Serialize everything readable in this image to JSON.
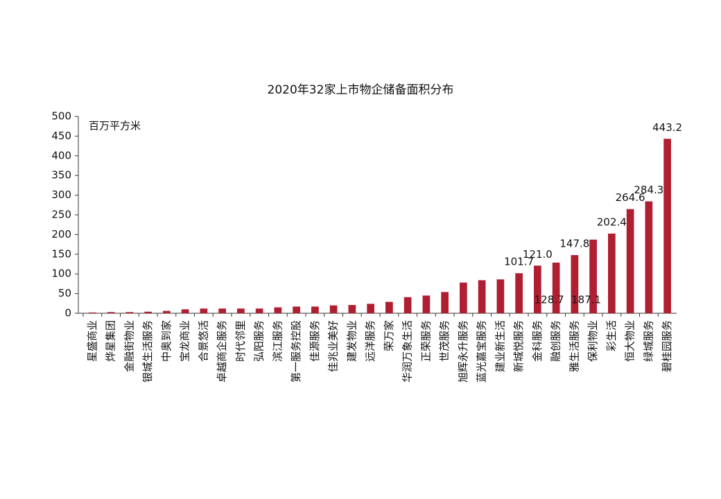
{
  "chart_data": {
    "type": "bar",
    "title": "2020年32家上市物企储备面积分布",
    "y_label": "百万平方米",
    "categories": [
      "星盛商业",
      "烨星集团",
      "金融街物业",
      "银城生活服务",
      "中奥到家",
      "宝龙商业",
      "合景悠活",
      "卓越商企服务",
      "时代邻里",
      "弘阳服务",
      "滨江服务",
      "第一服务控股",
      "佳源服务",
      "佳兆业美好",
      "建发物业",
      "远洋服务",
      "荣万家",
      "华润万象生活",
      "正荣服务",
      "世茂服务",
      "旭辉永升服务",
      "蓝光嘉宝服务",
      "建业新生活",
      "新城悦服务",
      "金科服务",
      "融创服务",
      "雅生活服务",
      "保利物业",
      "彩生活",
      "恒大物业",
      "绿城服务",
      "碧桂园服务"
    ],
    "values": [
      2,
      3,
      3,
      4,
      6,
      10,
      12,
      12,
      12,
      12,
      15,
      17,
      17,
      20,
      21,
      24,
      29,
      41,
      45,
      54,
      78,
      84,
      86,
      101.7,
      121.0,
      128.7,
      147.8,
      187.1,
      202.4,
      264.6,
      284.3,
      443.2
    ],
    "value_labels": [
      null,
      null,
      null,
      null,
      null,
      null,
      null,
      null,
      null,
      null,
      null,
      null,
      null,
      null,
      null,
      null,
      null,
      null,
      null,
      null,
      null,
      null,
      null,
      "101.7",
      "121.0",
      "128.7",
      "147.8",
      "187.1",
      "202.4",
      "264.6",
      "284.3",
      "443.2"
    ],
    "color": "#b01e32",
    "ylim": [
      0,
      500
    ],
    "yticks": [
      0,
      50,
      100,
      150,
      200,
      250,
      300,
      350,
      400,
      450,
      500
    ]
  }
}
